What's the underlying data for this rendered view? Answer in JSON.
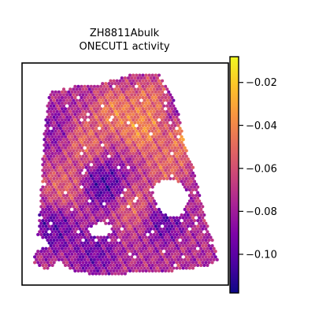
{
  "chart_data": {
    "type": "heatmap",
    "title": "ZH8811Abulk",
    "subtitle": "ONECUT1 activity",
    "xlabel": "",
    "ylabel": "",
    "colormap": "plasma",
    "colorbar": {
      "range": [
        -0.118,
        -0.008
      ],
      "ticks": [
        {
          "value": -0.02,
          "label": "−0.02"
        },
        {
          "value": -0.04,
          "label": "−0.04"
        },
        {
          "value": -0.06,
          "label": "−0.06"
        },
        {
          "value": -0.08,
          "label": "−0.08"
        },
        {
          "value": -0.1,
          "label": "−0.10"
        }
      ]
    },
    "legend": "right",
    "grid": false,
    "spatial_spots": {
      "description_only": false,
      "hot_regions": [
        {
          "u": 0.45,
          "v": 0.22,
          "value": -0.035
        },
        {
          "u": 0.58,
          "v": 0.3,
          "value": -0.03
        },
        {
          "u": 0.62,
          "v": 0.18,
          "value": -0.04
        },
        {
          "u": 0.3,
          "v": 0.35,
          "value": -0.045
        },
        {
          "u": 0.2,
          "v": 0.55,
          "value": -0.05
        },
        {
          "u": 0.7,
          "v": 0.45,
          "value": -0.045
        },
        {
          "u": 0.55,
          "v": 0.65,
          "value": -0.05
        },
        {
          "u": 0.82,
          "v": 0.32,
          "value": -0.02
        }
      ],
      "cold_regions": [
        {
          "u": 0.4,
          "v": 0.55,
          "value": -0.11
        },
        {
          "u": 0.15,
          "v": 0.75,
          "value": -0.105
        },
        {
          "u": 0.68,
          "v": 0.7,
          "value": -0.105
        },
        {
          "u": 0.8,
          "v": 0.2,
          "value": -0.1
        },
        {
          "u": 0.35,
          "v": 0.85,
          "value": -0.1
        },
        {
          "u": 0.15,
          "v": 0.3,
          "value": -0.09
        }
      ],
      "baseline": -0.075
    }
  }
}
